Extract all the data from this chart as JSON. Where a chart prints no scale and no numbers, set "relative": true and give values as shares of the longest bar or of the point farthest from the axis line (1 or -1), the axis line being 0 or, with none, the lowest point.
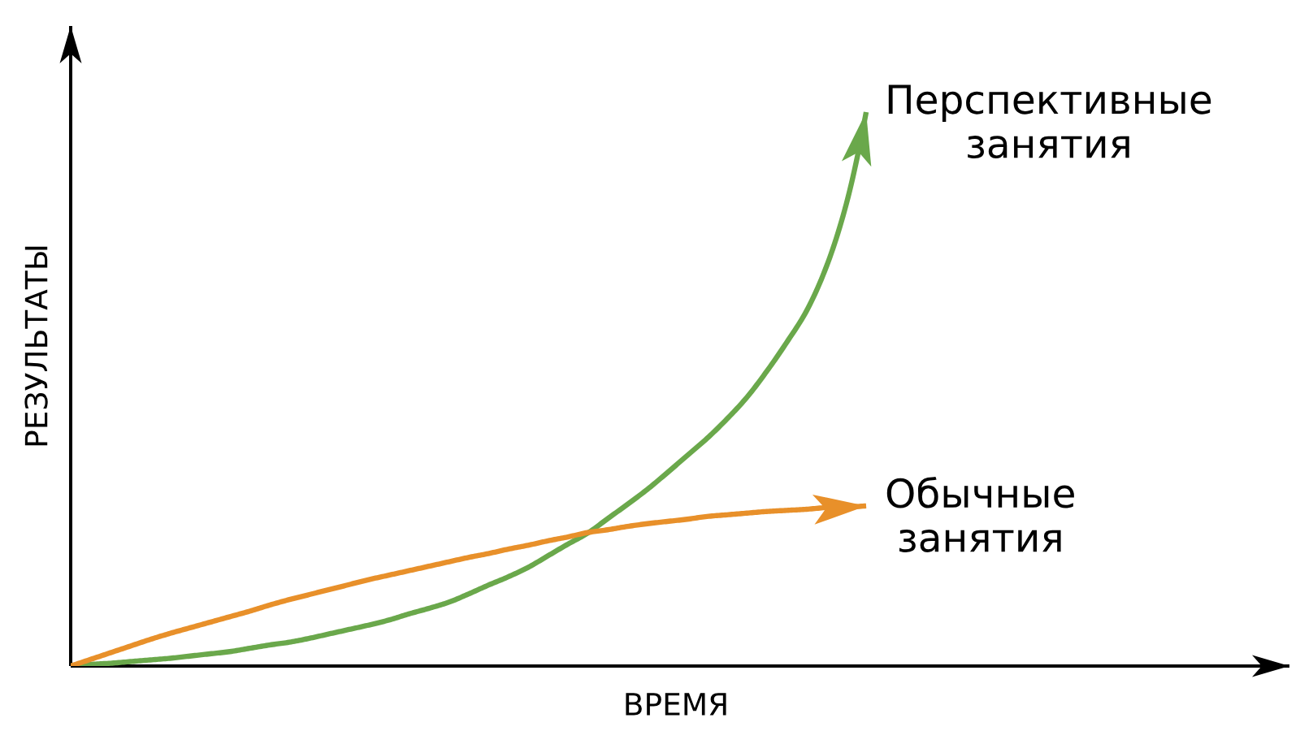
{
  "chart_data": {
    "type": "line",
    "xlabel": "ВРЕМЯ",
    "ylabel": "РЕЗУЛЬТАТЫ",
    "relative": true,
    "legend": "right",
    "categories": [
      null,
      null,
      null,
      null,
      null,
      null,
      null,
      null,
      null,
      null,
      null,
      null,
      null,
      null,
      null,
      null,
      null,
      null,
      null,
      null,
      null,
      null,
      null,
      null,
      null,
      null,
      null,
      null,
      null,
      null,
      null,
      null,
      null,
      null,
      null,
      null,
      null,
      null,
      null,
      null,
      null
    ],
    "series": [
      {
        "name": "Перспективные занятия",
        "color": "#6aa84b",
        "values": [
          0,
          0.003,
          0.005,
          0.008,
          0.011,
          0.014,
          0.018,
          0.022,
          0.026,
          0.032,
          0.038,
          0.043,
          0.05,
          0.058,
          0.066,
          0.074,
          0.083,
          0.094,
          0.104,
          0.115,
          0.13,
          0.146,
          0.161,
          0.178,
          0.199,
          0.22,
          0.24,
          0.266,
          0.292,
          0.319,
          0.349,
          0.38,
          0.411,
          0.446,
          0.485,
          0.532,
          0.584,
          0.641,
          0.721,
          0.834,
          1
        ]
      },
      {
        "name": "Обычные занятия",
        "color": "#e8902a",
        "values": [
          0,
          0.012,
          0.024,
          0.036,
          0.048,
          0.059,
          0.069,
          0.079,
          0.089,
          0.099,
          0.11,
          0.12,
          0.129,
          0.138,
          0.147,
          0.156,
          0.164,
          0.172,
          0.18,
          0.188,
          0.196,
          0.203,
          0.211,
          0.218,
          0.226,
          0.233,
          0.241,
          0.246,
          0.252,
          0.257,
          0.261,
          0.265,
          0.27,
          0.273,
          0.276,
          0.279,
          0.281,
          0.283,
          0.286,
          0.287,
          0.289
        ]
      }
    ]
  }
}
